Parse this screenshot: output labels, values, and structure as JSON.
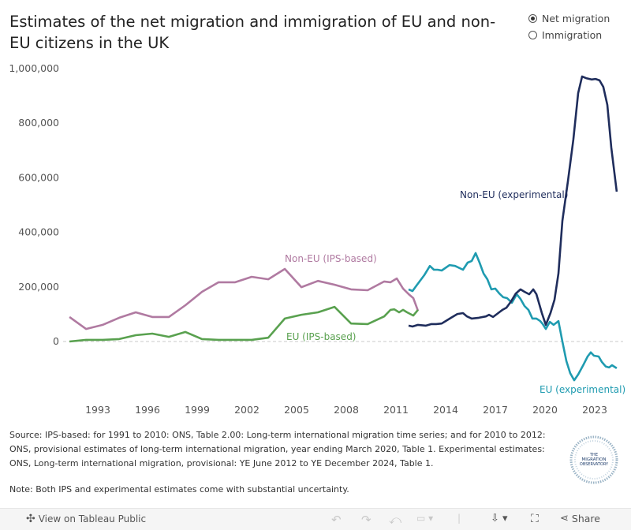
{
  "title": "Estimates of the net migration and immigration of EU and non-EU citizens in the UK",
  "legend": {
    "options": [
      {
        "label": "Net migration",
        "selected": true
      },
      {
        "label": "Immigration",
        "selected": false
      }
    ]
  },
  "chart_data": {
    "type": "line",
    "title": "Estimates of the net migration and immigration of EU and non-EU citizens in the UK",
    "xlabel": "",
    "ylabel": "",
    "xlim": [
      1991,
      2024.6
    ],
    "ylim": [
      -150000,
      1000000
    ],
    "x_ticks": [
      "1993",
      "1996",
      "1999",
      "2002",
      "2005",
      "2008",
      "2011",
      "2014",
      "2017",
      "2020",
      "2023"
    ],
    "y_ticks": [
      "1,000,000",
      "800,000",
      "600,000",
      "400,000",
      "200,000",
      "0"
    ],
    "y_tick_values": [
      1000000,
      800000,
      600000,
      400000,
      200000,
      0
    ],
    "zero_line": "dashed",
    "grid": false,
    "series": [
      {
        "name": "Non-EU (IPS-based)",
        "color": "#b07aa1",
        "x": [
          1991.29,
          1992.29,
          1993.29,
          1994.29,
          1995.29,
          1996.29,
          1997.29,
          1998.29,
          1999.29,
          2000.29,
          2001.29,
          2002.29,
          2003.29,
          2004.29,
          2005.29,
          2006.29,
          2007.29,
          2008.29,
          2009.29,
          2010.29,
          2010.67,
          2011.05,
          2011.43,
          2011.81,
          2012.05,
          2012.33
        ],
        "y": [
          90000,
          46000,
          61000,
          87000,
          107000,
          90000,
          90000,
          133000,
          182000,
          217000,
          217000,
          237000,
          228000,
          266000,
          199000,
          222000,
          208000,
          191000,
          188000,
          220000,
          217000,
          231000,
          194000,
          171000,
          159000,
          113000
        ]
      },
      {
        "name": "EU (IPS-based)",
        "color": "#59a14f",
        "x": [
          1991.29,
          1992.29,
          1993.29,
          1994.29,
          1995.29,
          1996.29,
          1997.29,
          1998.29,
          1999.29,
          2000.29,
          2001.29,
          2002.29,
          2003.29,
          2004.29,
          2005.29,
          2006.29,
          2007.29,
          2008.29,
          2009.29,
          2010.29,
          2010.67,
          2010.9,
          2011.19,
          2011.43,
          2011.67,
          2012.05,
          2012.33
        ],
        "y": [
          0,
          6000,
          6000,
          9000,
          23000,
          29000,
          17000,
          35000,
          9000,
          6000,
          6000,
          6000,
          14000,
          84000,
          98000,
          107000,
          127000,
          66000,
          64000,
          92000,
          116000,
          118000,
          107000,
          116000,
          107000,
          95000,
          116000
        ]
      },
      {
        "name": "EU (experimental)",
        "color": "#1f9bb0",
        "x": [
          2011.76,
          2012.0,
          2012.24,
          2012.71,
          2013.05,
          2013.29,
          2013.52,
          2013.76,
          2014.24,
          2014.57,
          2015.05,
          2015.33,
          2015.57,
          2015.81,
          2016.05,
          2016.29,
          2016.52,
          2016.76,
          2017.0,
          2017.24,
          2017.48,
          2017.71,
          2018.0,
          2018.29,
          2018.52,
          2018.76,
          2019.0,
          2019.24,
          2019.48,
          2019.71,
          2019.86,
          2020.05,
          2020.29,
          2020.52,
          2020.81,
          2021.05,
          2021.29,
          2021.52,
          2021.76,
          2022.0,
          2022.33,
          2022.57,
          2022.76,
          2022.95,
          2023.24,
          2023.43,
          2023.67,
          2023.86,
          2024.05,
          2024.33
        ],
        "y": [
          191000,
          185000,
          205000,
          243000,
          277000,
          263000,
          263000,
          260000,
          280000,
          277000,
          263000,
          289000,
          295000,
          324000,
          289000,
          249000,
          228000,
          191000,
          194000,
          176000,
          162000,
          159000,
          142000,
          173000,
          156000,
          130000,
          116000,
          84000,
          84000,
          75000,
          64000,
          46000,
          72000,
          61000,
          75000,
          0,
          -72000,
          -116000,
          -142000,
          -121000,
          -84000,
          -55000,
          -40000,
          -52000,
          -55000,
          -75000,
          -92000,
          -95000,
          -87000,
          -98000
        ]
      },
      {
        "name": "Non-EU (experimental)",
        "color": "#1f2d5c",
        "x": [
          2011.76,
          2012.0,
          2012.33,
          2012.81,
          2013.14,
          2013.43,
          2013.76,
          2014.0,
          2014.33,
          2014.71,
          2015.05,
          2015.29,
          2015.57,
          2016.0,
          2016.43,
          2016.62,
          2016.86,
          2017.1,
          2017.43,
          2017.67,
          2017.95,
          2018.24,
          2018.52,
          2018.76,
          2019.05,
          2019.29,
          2019.48,
          2019.81,
          2020.05,
          2020.33,
          2020.57,
          2020.81,
          2021.05,
          2021.38,
          2021.71,
          2022.0,
          2022.24,
          2022.48,
          2022.81,
          2023.05,
          2023.29,
          2023.52,
          2023.76,
          2024.0,
          2024.33
        ],
        "y": [
          58000,
          55000,
          61000,
          58000,
          64000,
          64000,
          66000,
          75000,
          87000,
          101000,
          104000,
          92000,
          84000,
          87000,
          92000,
          98000,
          90000,
          101000,
          116000,
          124000,
          147000,
          176000,
          191000,
          182000,
          173000,
          191000,
          173000,
          104000,
          61000,
          104000,
          153000,
          249000,
          442000,
          587000,
          740000,
          910000,
          971000,
          965000,
          960000,
          962000,
          957000,
          933000,
          867000,
          711000,
          549000
        ]
      }
    ]
  },
  "source": "Source: IPS-based: for 1991 to 2010: ONS, Table 2.00: Long-term international migration time series; and for 2010 to 2012: ONS, provisional estimates of long-term international migration, year ending March 2020, Table 1. Experimental estimates: ONS, Long-term international migration, provisional: YE June 2012 to YE December 2024, Table 1.",
  "note": "Note: Both IPS and experimental estimates come with substantial uncertainty.",
  "logo": {
    "text": "THE MIGRATION OBSERVATORY"
  },
  "toolbar": {
    "view_label": "View on Tableau Public",
    "share_label": "Share",
    "icons": [
      "undo-icon",
      "redo-icon",
      "revert-icon",
      "refresh-icon",
      "download-icon",
      "fullscreen-icon",
      "share-icon"
    ]
  }
}
